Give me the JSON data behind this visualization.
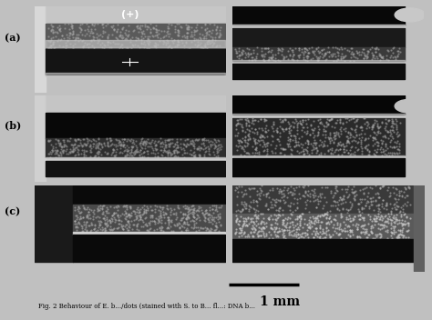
{
  "figure_bg": "#c0c0c0",
  "scale_bar_label": "1 mm",
  "row_labels": [
    "(a)",
    "(b)",
    "(c)"
  ],
  "plus_label": "(+)",
  "caption_text": "Fig. 2 Behaviour of E. b.../dots (stained with S. to B... fl...: DNA b..."
}
